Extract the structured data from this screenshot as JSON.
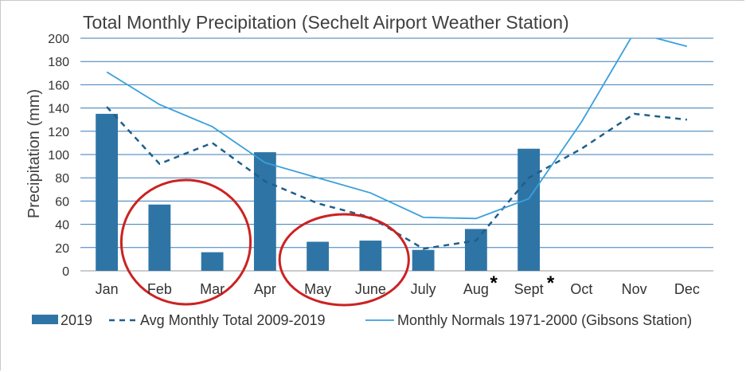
{
  "chart_data": {
    "type": "bar",
    "title": "Total Monthly Precipitation (Sechelt Airport Weather Station)",
    "xlabel": "",
    "ylabel": "Precipitation (mm)",
    "ylim": [
      0,
      200
    ],
    "yticks": [
      "0",
      "20",
      "40",
      "60",
      "80",
      "100",
      "120",
      "140",
      "160",
      "180",
      "200"
    ],
    "categories": [
      "Jan",
      "Feb",
      "Mar",
      "Apr",
      "May",
      "June",
      "July",
      "Aug",
      "Sept",
      "Oct",
      "Nov",
      "Dec"
    ],
    "category_markers": {
      "Aug": "*",
      "Sept": "*"
    },
    "grid": true,
    "legend_position": "bottom",
    "series": [
      {
        "name": "2019",
        "kind": "bar",
        "color": "#2e75a6",
        "values": [
          135,
          57,
          16,
          102,
          25,
          26,
          18,
          36,
          105,
          null,
          null,
          null
        ]
      },
      {
        "name": "Avg Monthly Total 2009-2019",
        "kind": "line",
        "style": "dashed",
        "color": "#1f5f8b",
        "values": [
          141,
          92,
          110,
          77,
          58,
          46,
          19,
          26,
          80,
          105,
          135,
          130
        ]
      },
      {
        "name": "Monthly Normals 1971-2000 (Gibsons Station)",
        "kind": "line",
        "style": "solid",
        "color": "#3aa0db",
        "values": [
          171,
          143,
          124,
          93,
          80,
          67,
          46,
          45,
          62,
          128,
          205,
          193
        ]
      }
    ],
    "annotations": [
      {
        "type": "ellipse",
        "color": "#cc2222",
        "covers": [
          "Feb",
          "Mar"
        ]
      },
      {
        "type": "ellipse",
        "color": "#cc2222",
        "covers": [
          "May",
          "June"
        ]
      }
    ]
  }
}
